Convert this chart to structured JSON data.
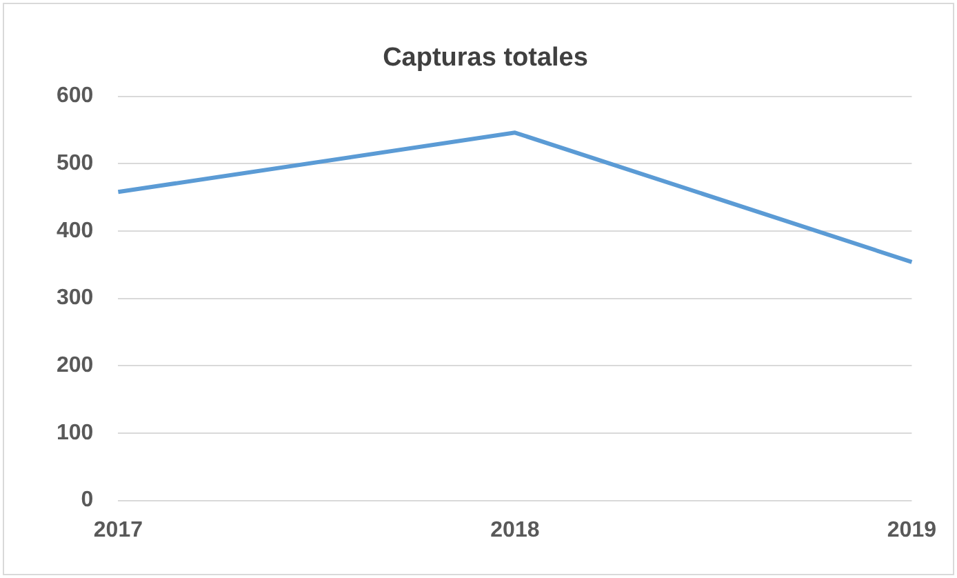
{
  "chart_data": {
    "type": "line",
    "title": "Capturas totales",
    "categories": [
      "2017",
      "2018",
      "2019"
    ],
    "series": [
      {
        "color": "#5b9bd5",
        "values": [
          458,
          546,
          354
        ]
      }
    ],
    "ylim": [
      0,
      600
    ],
    "yticks": [
      0,
      100,
      200,
      300,
      400,
      500,
      600
    ],
    "grid": "y",
    "legend": false,
    "marker": "none"
  }
}
